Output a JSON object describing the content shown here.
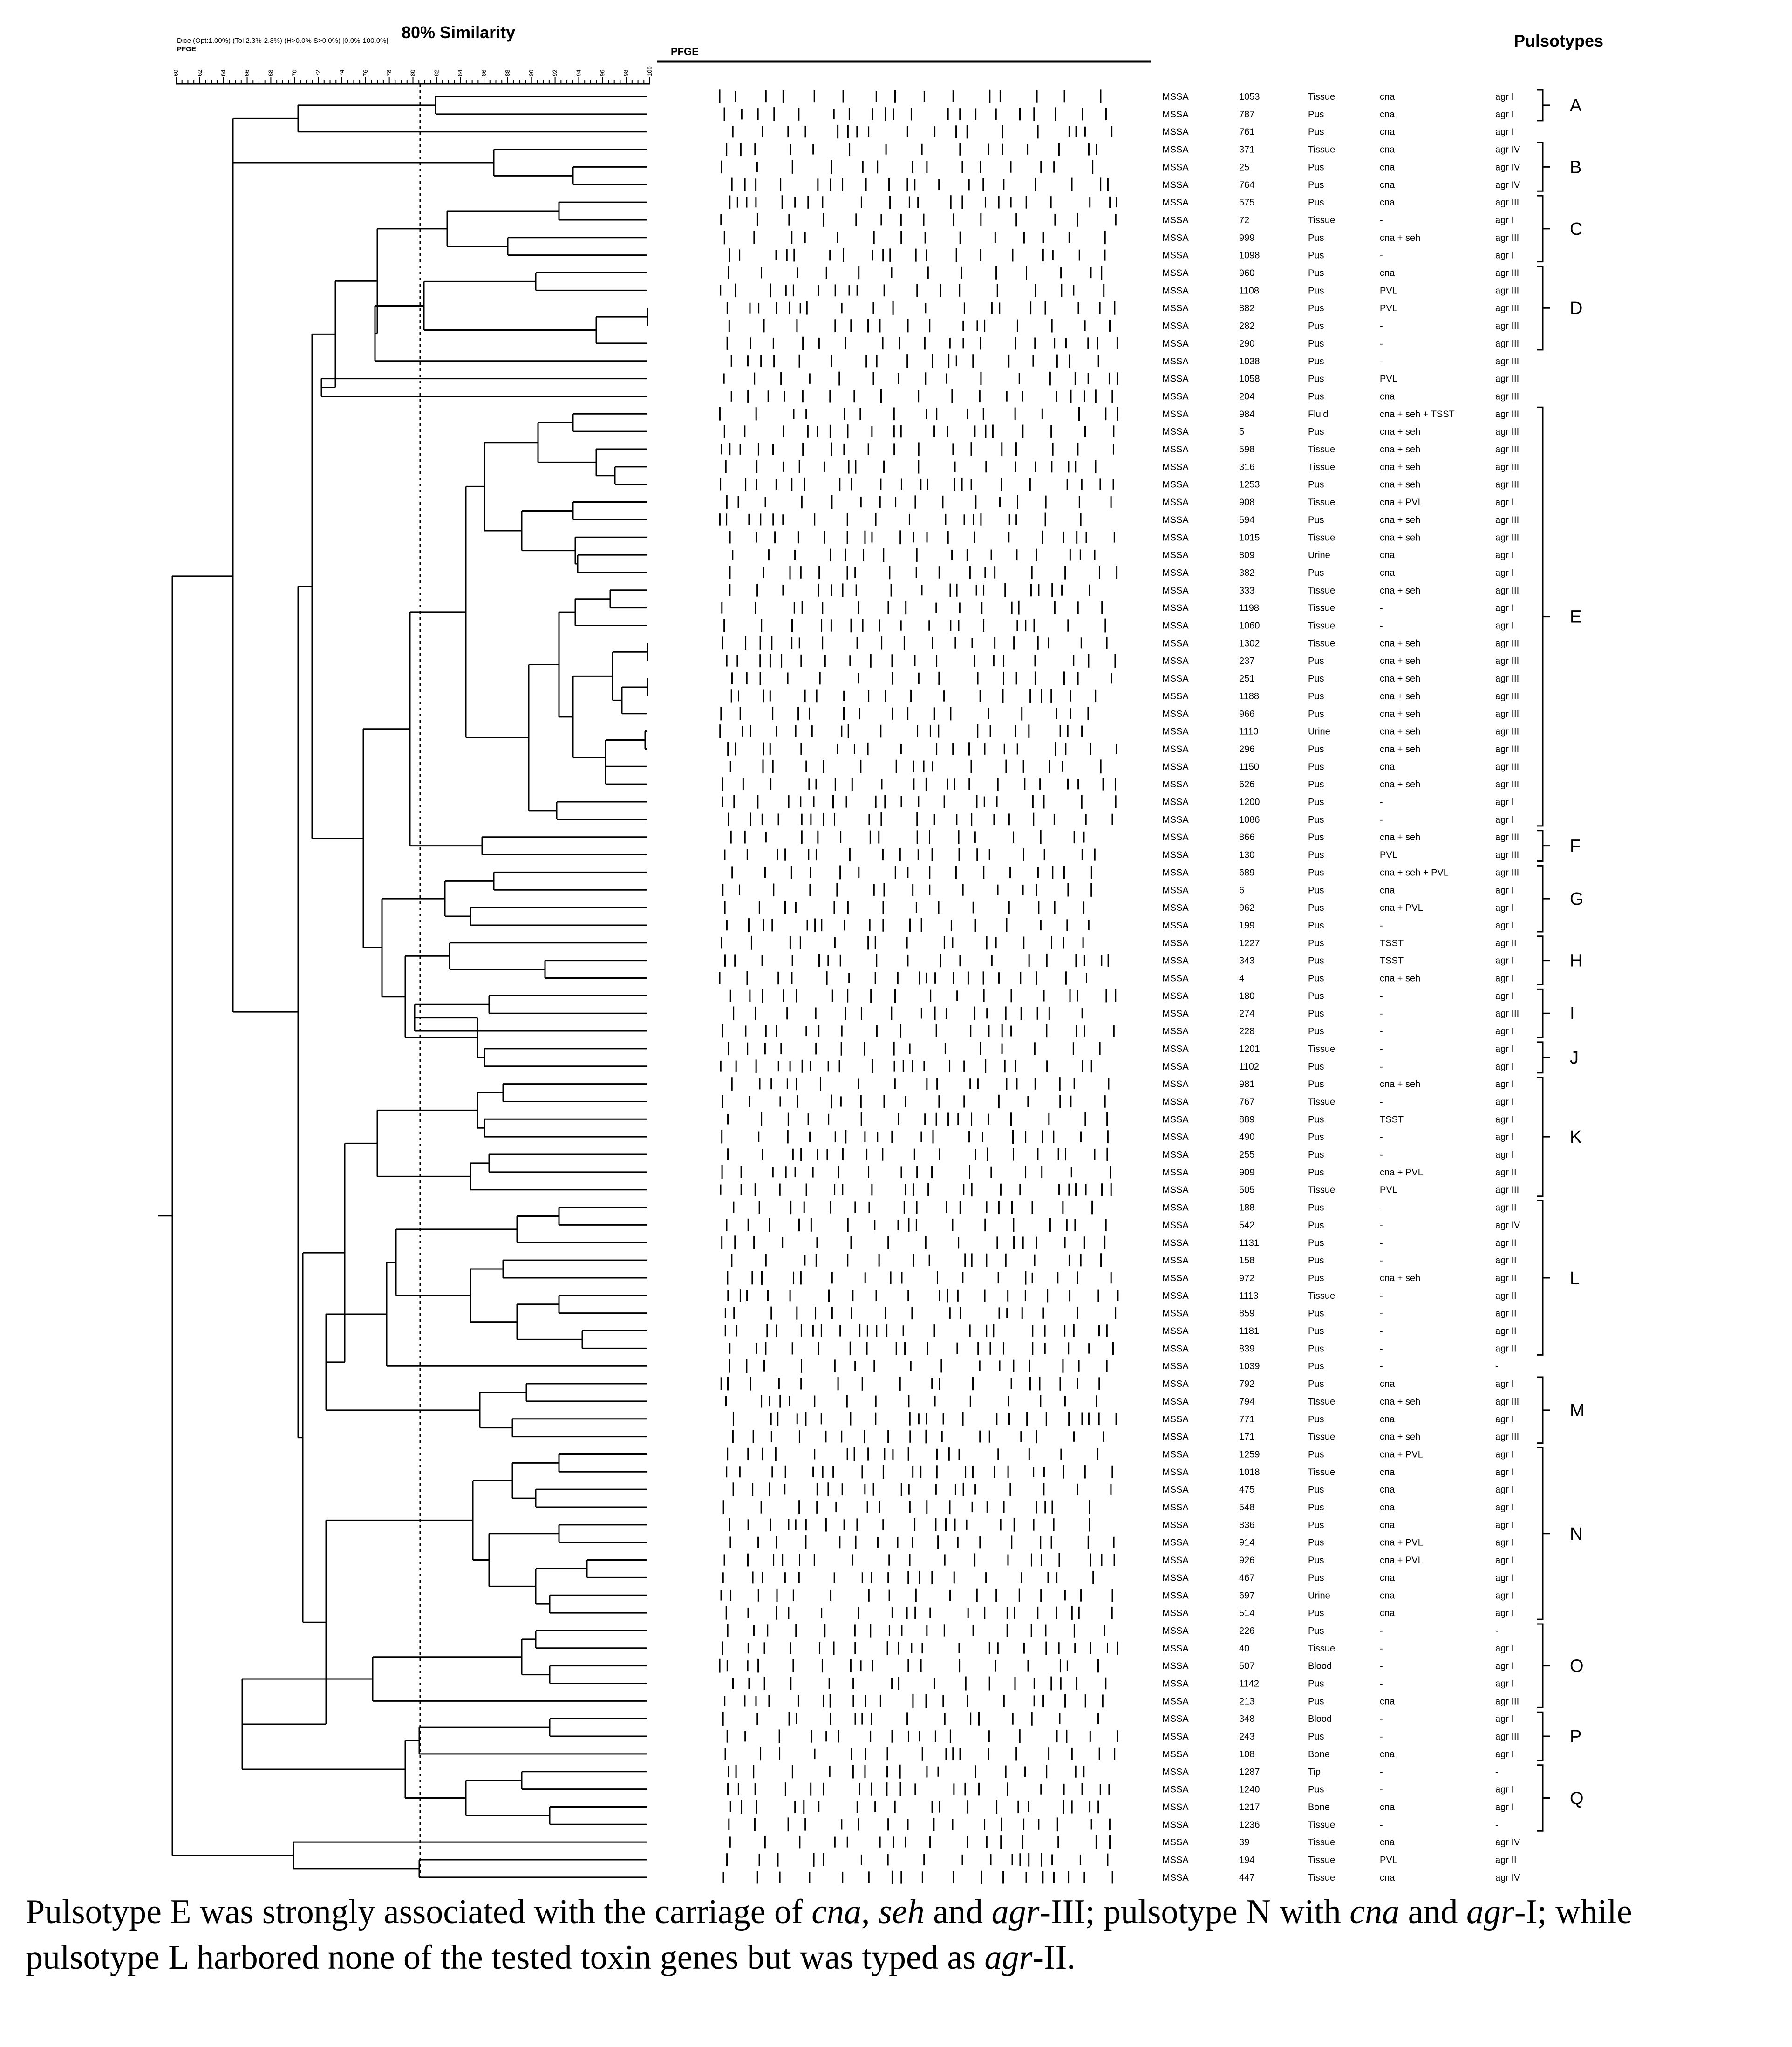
{
  "header": {
    "similarity_label": "80% Similarity",
    "settings_text": "Dice (Opt:1.00%) (Tol 2.3%-2.3%) (H>0.0% S>0.0%) [0.0%-100.0%]",
    "method_text": "PFGE",
    "gel_label": "PFGE",
    "pulsotypes_title": "Pulsotypes"
  },
  "scale_ticks": [
    "60",
    "62",
    "64",
    "66",
    "68",
    "70",
    "72",
    "74",
    "76",
    "78",
    "80",
    "82",
    "84",
    "86",
    "88",
    "90",
    "92",
    "94",
    "96",
    "98",
    "100"
  ],
  "isolates": [
    {
      "sp": "MSSA",
      "id": "1053",
      "src": "Tissue",
      "genes": "cna",
      "agr": "agr I"
    },
    {
      "sp": "MSSA",
      "id": "787",
      "src": "Pus",
      "genes": "cna",
      "agr": "agr I"
    },
    {
      "sp": "MSSA",
      "id": "761",
      "src": "Pus",
      "genes": "cna",
      "agr": "agr I"
    },
    {
      "sp": "MSSA",
      "id": "371",
      "src": "Tissue",
      "genes": "cna",
      "agr": "agr IV"
    },
    {
      "sp": "MSSA",
      "id": "25",
      "src": "Pus",
      "genes": "cna",
      "agr": "agr IV"
    },
    {
      "sp": "MSSA",
      "id": "764",
      "src": "Pus",
      "genes": "cna",
      "agr": "agr IV"
    },
    {
      "sp": "MSSA",
      "id": "575",
      "src": "Pus",
      "genes": "cna",
      "agr": "agr III"
    },
    {
      "sp": "MSSA",
      "id": "72",
      "src": "Tissue",
      "genes": "-",
      "agr": "agr I"
    },
    {
      "sp": "MSSA",
      "id": "999",
      "src": "Pus",
      "genes": "cna + seh",
      "agr": "agr III"
    },
    {
      "sp": "MSSA",
      "id": "1098",
      "src": "Pus",
      "genes": "-",
      "agr": "agr I"
    },
    {
      "sp": "MSSA",
      "id": "960",
      "src": "Pus",
      "genes": "cna",
      "agr": "agr III"
    },
    {
      "sp": "MSSA",
      "id": "1108",
      "src": "Pus",
      "genes": "PVL",
      "agr": "agr III"
    },
    {
      "sp": "MSSA",
      "id": "882",
      "src": "Pus",
      "genes": "PVL",
      "agr": "agr III"
    },
    {
      "sp": "MSSA",
      "id": "282",
      "src": "Pus",
      "genes": "-",
      "agr": "agr III"
    },
    {
      "sp": "MSSA",
      "id": "290",
      "src": "Pus",
      "genes": "-",
      "agr": "agr III"
    },
    {
      "sp": "MSSA",
      "id": "1038",
      "src": "Pus",
      "genes": "-",
      "agr": "agr III"
    },
    {
      "sp": "MSSA",
      "id": "1058",
      "src": "Pus",
      "genes": "PVL",
      "agr": "agr III"
    },
    {
      "sp": "MSSA",
      "id": "204",
      "src": "Pus",
      "genes": "cna",
      "agr": "agr III"
    },
    {
      "sp": "MSSA",
      "id": "984",
      "src": "Fluid",
      "genes": "cna + seh + TSST",
      "agr": "agr III"
    },
    {
      "sp": "MSSA",
      "id": "5",
      "src": "Pus",
      "genes": "cna + seh",
      "agr": "agr III"
    },
    {
      "sp": "MSSA",
      "id": "598",
      "src": "Tissue",
      "genes": "cna + seh",
      "agr": "agr III"
    },
    {
      "sp": "MSSA",
      "id": "316",
      "src": "Tissue",
      "genes": "cna + seh",
      "agr": "agr III"
    },
    {
      "sp": "MSSA",
      "id": "1253",
      "src": "Pus",
      "genes": "cna + seh",
      "agr": "agr III"
    },
    {
      "sp": "MSSA",
      "id": "908",
      "src": "Tissue",
      "genes": "cna + PVL",
      "agr": "agr I"
    },
    {
      "sp": "MSSA",
      "id": "594",
      "src": "Pus",
      "genes": "cna + seh",
      "agr": "agr III"
    },
    {
      "sp": "MSSA",
      "id": "1015",
      "src": "Tissue",
      "genes": "cna + seh",
      "agr": "agr III"
    },
    {
      "sp": "MSSA",
      "id": "809",
      "src": "Urine",
      "genes": "cna",
      "agr": "agr I"
    },
    {
      "sp": "MSSA",
      "id": "382",
      "src": "Pus",
      "genes": "cna",
      "agr": "agr I"
    },
    {
      "sp": "MSSA",
      "id": "333",
      "src": "Tissue",
      "genes": "cna + seh",
      "agr": "agr III"
    },
    {
      "sp": "MSSA",
      "id": "1198",
      "src": "Tissue",
      "genes": "-",
      "agr": "agr I"
    },
    {
      "sp": "MSSA",
      "id": "1060",
      "src": "Tissue",
      "genes": "-",
      "agr": "agr I"
    },
    {
      "sp": "MSSA",
      "id": "1302",
      "src": "Tissue",
      "genes": "cna + seh",
      "agr": "agr III"
    },
    {
      "sp": "MSSA",
      "id": "237",
      "src": "Pus",
      "genes": "cna + seh",
      "agr": "agr III"
    },
    {
      "sp": "MSSA",
      "id": "251",
      "src": "Pus",
      "genes": "cna + seh",
      "agr": "agr III"
    },
    {
      "sp": "MSSA",
      "id": "1188",
      "src": "Pus",
      "genes": "cna + seh",
      "agr": "agr III"
    },
    {
      "sp": "MSSA",
      "id": "966",
      "src": "Pus",
      "genes": "cna + seh",
      "agr": "agr III"
    },
    {
      "sp": "MSSA",
      "id": "1110",
      "src": "Urine",
      "genes": "cna + seh",
      "agr": "agr III"
    },
    {
      "sp": "MSSA",
      "id": "296",
      "src": "Pus",
      "genes": "cna + seh",
      "agr": "agr III"
    },
    {
      "sp": "MSSA",
      "id": "1150",
      "src": "Pus",
      "genes": "cna",
      "agr": "agr III"
    },
    {
      "sp": "MSSA",
      "id": "626",
      "src": "Pus",
      "genes": "cna + seh",
      "agr": "agr III"
    },
    {
      "sp": "MSSA",
      "id": "1200",
      "src": "Pus",
      "genes": "-",
      "agr": "agr I"
    },
    {
      "sp": "MSSA",
      "id": "1086",
      "src": "Pus",
      "genes": "-",
      "agr": "agr I"
    },
    {
      "sp": "MSSA",
      "id": "866",
      "src": "Pus",
      "genes": "cna + seh",
      "agr": "agr III"
    },
    {
      "sp": "MSSA",
      "id": "130",
      "src": "Pus",
      "genes": "PVL",
      "agr": "agr III"
    },
    {
      "sp": "MSSA",
      "id": "689",
      "src": "Pus",
      "genes": "cna + seh + PVL",
      "agr": "agr III"
    },
    {
      "sp": "MSSA",
      "id": "6",
      "src": "Pus",
      "genes": "cna",
      "agr": "agr I"
    },
    {
      "sp": "MSSA",
      "id": "962",
      "src": "Pus",
      "genes": "cna + PVL",
      "agr": "agr I"
    },
    {
      "sp": "MSSA",
      "id": "199",
      "src": "Pus",
      "genes": "-",
      "agr": "agr I"
    },
    {
      "sp": "MSSA",
      "id": "1227",
      "src": "Pus",
      "genes": "TSST",
      "agr": "agr II"
    },
    {
      "sp": "MSSA",
      "id": "343",
      "src": "Pus",
      "genes": "TSST",
      "agr": "agr I"
    },
    {
      "sp": "MSSA",
      "id": "4",
      "src": "Pus",
      "genes": "cna + seh",
      "agr": "agr I"
    },
    {
      "sp": "MSSA",
      "id": "180",
      "src": "Pus",
      "genes": "-",
      "agr": "agr I"
    },
    {
      "sp": "MSSA",
      "id": "274",
      "src": "Pus",
      "genes": "-",
      "agr": "agr III"
    },
    {
      "sp": "MSSA",
      "id": "228",
      "src": "Pus",
      "genes": "-",
      "agr": "agr I"
    },
    {
      "sp": "MSSA",
      "id": "1201",
      "src": "Tissue",
      "genes": "-",
      "agr": "agr I"
    },
    {
      "sp": "MSSA",
      "id": "1102",
      "src": "Pus",
      "genes": "-",
      "agr": "agr I"
    },
    {
      "sp": "MSSA",
      "id": "981",
      "src": "Pus",
      "genes": "cna + seh",
      "agr": "agr I"
    },
    {
      "sp": "MSSA",
      "id": "767",
      "src": "Tissue",
      "genes": "-",
      "agr": "agr I"
    },
    {
      "sp": "MSSA",
      "id": "889",
      "src": "Pus",
      "genes": "TSST",
      "agr": "agr I"
    },
    {
      "sp": "MSSA",
      "id": "490",
      "src": "Pus",
      "genes": "-",
      "agr": "agr I"
    },
    {
      "sp": "MSSA",
      "id": "255",
      "src": "Pus",
      "genes": "-",
      "agr": "agr I"
    },
    {
      "sp": "MSSA",
      "id": "909",
      "src": "Pus",
      "genes": "cna + PVL",
      "agr": "agr II"
    },
    {
      "sp": "MSSA",
      "id": "505",
      "src": "Tissue",
      "genes": "PVL",
      "agr": "agr III"
    },
    {
      "sp": "MSSA",
      "id": "188",
      "src": "Pus",
      "genes": "-",
      "agr": "agr II"
    },
    {
      "sp": "MSSA",
      "id": "542",
      "src": "Pus",
      "genes": "-",
      "agr": "agr IV"
    },
    {
      "sp": "MSSA",
      "id": "1131",
      "src": "Pus",
      "genes": "-",
      "agr": "agr II"
    },
    {
      "sp": "MSSA",
      "id": "158",
      "src": "Pus",
      "genes": "-",
      "agr": "agr II"
    },
    {
      "sp": "MSSA",
      "id": "972",
      "src": "Pus",
      "genes": "cna + seh",
      "agr": "agr II"
    },
    {
      "sp": "MSSA",
      "id": "1113",
      "src": "Tissue",
      "genes": "-",
      "agr": "agr II"
    },
    {
      "sp": "MSSA",
      "id": "859",
      "src": "Pus",
      "genes": "-",
      "agr": "agr II"
    },
    {
      "sp": "MSSA",
      "id": "1181",
      "src": "Pus",
      "genes": "-",
      "agr": "agr II"
    },
    {
      "sp": "MSSA",
      "id": "839",
      "src": "Pus",
      "genes": "-",
      "agr": "agr II"
    },
    {
      "sp": "MSSA",
      "id": "1039",
      "src": "Pus",
      "genes": "-",
      "agr": "-"
    },
    {
      "sp": "MSSA",
      "id": "792",
      "src": "Pus",
      "genes": "cna",
      "agr": "agr I"
    },
    {
      "sp": "MSSA",
      "id": "794",
      "src": "Tissue",
      "genes": "cna + seh",
      "agr": "agr III"
    },
    {
      "sp": "MSSA",
      "id": "771",
      "src": "Pus",
      "genes": "cna",
      "agr": "agr I"
    },
    {
      "sp": "MSSA",
      "id": "171",
      "src": "Tissue",
      "genes": "cna + seh",
      "agr": "agr III"
    },
    {
      "sp": "MSSA",
      "id": "1259",
      "src": "Pus",
      "genes": "cna + PVL",
      "agr": "agr I"
    },
    {
      "sp": "MSSA",
      "id": "1018",
      "src": "Tissue",
      "genes": "cna",
      "agr": "agr I"
    },
    {
      "sp": "MSSA",
      "id": "475",
      "src": "Pus",
      "genes": "cna",
      "agr": "agr I"
    },
    {
      "sp": "MSSA",
      "id": "548",
      "src": "Pus",
      "genes": "cna",
      "agr": "agr I"
    },
    {
      "sp": "MSSA",
      "id": "836",
      "src": "Pus",
      "genes": "cna",
      "agr": "agr I"
    },
    {
      "sp": "MSSA",
      "id": "914",
      "src": "Pus",
      "genes": "cna + PVL",
      "agr": "agr I"
    },
    {
      "sp": "MSSA",
      "id": "926",
      "src": "Pus",
      "genes": "cna + PVL",
      "agr": "agr I"
    },
    {
      "sp": "MSSA",
      "id": "467",
      "src": "Pus",
      "genes": "cna",
      "agr": "agr I"
    },
    {
      "sp": "MSSA",
      "id": "697",
      "src": "Urine",
      "genes": "cna",
      "agr": "agr I"
    },
    {
      "sp": "MSSA",
      "id": "514",
      "src": "Pus",
      "genes": "cna",
      "agr": "agr I"
    },
    {
      "sp": "MSSA",
      "id": "226",
      "src": "Pus",
      "genes": "-",
      "agr": "-"
    },
    {
      "sp": "MSSA",
      "id": "40",
      "src": "Tissue",
      "genes": "-",
      "agr": "agr I"
    },
    {
      "sp": "MSSA",
      "id": "507",
      "src": "Blood",
      "genes": "-",
      "agr": "agr I"
    },
    {
      "sp": "MSSA",
      "id": "1142",
      "src": "Pus",
      "genes": "-",
      "agr": "agr I"
    },
    {
      "sp": "MSSA",
      "id": "213",
      "src": "Pus",
      "genes": "cna",
      "agr": "agr III"
    },
    {
      "sp": "MSSA",
      "id": "348",
      "src": "Blood",
      "genes": "-",
      "agr": "agr I"
    },
    {
      "sp": "MSSA",
      "id": "243",
      "src": "Pus",
      "genes": "-",
      "agr": "agr III"
    },
    {
      "sp": "MSSA",
      "id": "108",
      "src": "Bone",
      "genes": "cna",
      "agr": "agr I"
    },
    {
      "sp": "MSSA",
      "id": "1287",
      "src": "Tip",
      "genes": "-",
      "agr": "-"
    },
    {
      "sp": "MSSA",
      "id": "1240",
      "src": "Pus",
      "genes": "-",
      "agr": "agr I"
    },
    {
      "sp": "MSSA",
      "id": "1217",
      "src": "Bone",
      "genes": "cna",
      "agr": "agr I"
    },
    {
      "sp": "MSSA",
      "id": "1236",
      "src": "Tissue",
      "genes": "-",
      "agr": "-"
    },
    {
      "sp": "MSSA",
      "id": "39",
      "src": "Tissue",
      "genes": "cna",
      "agr": "agr IV"
    },
    {
      "sp": "MSSA",
      "id": "194",
      "src": "Tissue",
      "genes": "PVL",
      "agr": "agr II"
    },
    {
      "sp": "MSSA",
      "id": "447",
      "src": "Tissue",
      "genes": "cna",
      "agr": "agr IV"
    }
  ],
  "pulsotypes": [
    {
      "label": "A",
      "first": 0,
      "last": 1
    },
    {
      "label": "B",
      "first": 3,
      "last": 5
    },
    {
      "label": "C",
      "first": 6,
      "last": 9
    },
    {
      "label": "D",
      "first": 10,
      "last": 14
    },
    {
      "label": "E",
      "first": 18,
      "last": 41
    },
    {
      "label": "F",
      "first": 42,
      "last": 43
    },
    {
      "label": "G",
      "first": 44,
      "last": 47
    },
    {
      "label": "H",
      "first": 48,
      "last": 50
    },
    {
      "label": "I",
      "first": 51,
      "last": 53
    },
    {
      "label": "J",
      "first": 54,
      "last": 55
    },
    {
      "label": "K",
      "first": 56,
      "last": 62
    },
    {
      "label": "L",
      "first": 63,
      "last": 71
    },
    {
      "label": "M",
      "first": 73,
      "last": 76
    },
    {
      "label": "N",
      "first": 77,
      "last": 86
    },
    {
      "label": "O",
      "first": 87,
      "last": 91
    },
    {
      "label": "P",
      "first": 92,
      "last": 94
    },
    {
      "label": "Q",
      "first": 95,
      "last": 98
    }
  ],
  "caption": {
    "p1": "Pulsotype E was strongly associated with the carriage of ",
    "g1": "cna",
    "p2": ", ",
    "g2": "seh",
    "p3": " and ",
    "g3": "agr",
    "p4": "-III; pulsotype N with ",
    "g4": "cna",
    "p5": " and ",
    "g5": "agr",
    "p6": "-I; while pulsotype L harbored none of the tested toxin genes but was typed as ",
    "g6": "agr",
    "p7": "-II."
  }
}
